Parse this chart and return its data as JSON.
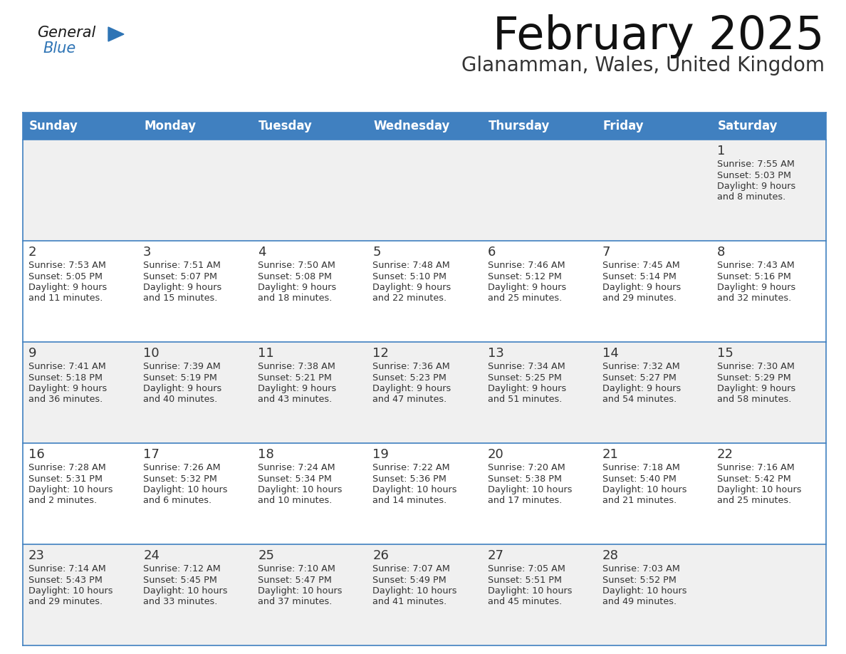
{
  "title": "February 2025",
  "subtitle": "Glanamman, Wales, United Kingdom",
  "days_of_week": [
    "Sunday",
    "Monday",
    "Tuesday",
    "Wednesday",
    "Thursday",
    "Friday",
    "Saturday"
  ],
  "header_bg": "#4080C0",
  "header_text": "#FFFFFF",
  "cell_bg_odd": "#F0F0F0",
  "cell_bg_even": "#FFFFFF",
  "border_color": "#4080C0",
  "day_number_color": "#333333",
  "cell_text_color": "#333333",
  "title_color": "#111111",
  "subtitle_color": "#333333",
  "logo_black": "#1A1A1A",
  "logo_blue": "#2E74B5",
  "triangle_blue": "#2E74B5",
  "calendar_data": [
    [
      null,
      null,
      null,
      null,
      null,
      null,
      {
        "day": 1,
        "sunrise": "7:55 AM",
        "sunset": "5:03 PM",
        "daylight": "9 hours",
        "daylight2": "and 8 minutes."
      }
    ],
    [
      {
        "day": 2,
        "sunrise": "7:53 AM",
        "sunset": "5:05 PM",
        "daylight": "9 hours",
        "daylight2": "and 11 minutes."
      },
      {
        "day": 3,
        "sunrise": "7:51 AM",
        "sunset": "5:07 PM",
        "daylight": "9 hours",
        "daylight2": "and 15 minutes."
      },
      {
        "day": 4,
        "sunrise": "7:50 AM",
        "sunset": "5:08 PM",
        "daylight": "9 hours",
        "daylight2": "and 18 minutes."
      },
      {
        "day": 5,
        "sunrise": "7:48 AM",
        "sunset": "5:10 PM",
        "daylight": "9 hours",
        "daylight2": "and 22 minutes."
      },
      {
        "day": 6,
        "sunrise": "7:46 AM",
        "sunset": "5:12 PM",
        "daylight": "9 hours",
        "daylight2": "and 25 minutes."
      },
      {
        "day": 7,
        "sunrise": "7:45 AM",
        "sunset": "5:14 PM",
        "daylight": "9 hours",
        "daylight2": "and 29 minutes."
      },
      {
        "day": 8,
        "sunrise": "7:43 AM",
        "sunset": "5:16 PM",
        "daylight": "9 hours",
        "daylight2": "and 32 minutes."
      }
    ],
    [
      {
        "day": 9,
        "sunrise": "7:41 AM",
        "sunset": "5:18 PM",
        "daylight": "9 hours",
        "daylight2": "and 36 minutes."
      },
      {
        "day": 10,
        "sunrise": "7:39 AM",
        "sunset": "5:19 PM",
        "daylight": "9 hours",
        "daylight2": "and 40 minutes."
      },
      {
        "day": 11,
        "sunrise": "7:38 AM",
        "sunset": "5:21 PM",
        "daylight": "9 hours",
        "daylight2": "and 43 minutes."
      },
      {
        "day": 12,
        "sunrise": "7:36 AM",
        "sunset": "5:23 PM",
        "daylight": "9 hours",
        "daylight2": "and 47 minutes."
      },
      {
        "day": 13,
        "sunrise": "7:34 AM",
        "sunset": "5:25 PM",
        "daylight": "9 hours",
        "daylight2": "and 51 minutes."
      },
      {
        "day": 14,
        "sunrise": "7:32 AM",
        "sunset": "5:27 PM",
        "daylight": "9 hours",
        "daylight2": "and 54 minutes."
      },
      {
        "day": 15,
        "sunrise": "7:30 AM",
        "sunset": "5:29 PM",
        "daylight": "9 hours",
        "daylight2": "and 58 minutes."
      }
    ],
    [
      {
        "day": 16,
        "sunrise": "7:28 AM",
        "sunset": "5:31 PM",
        "daylight": "10 hours",
        "daylight2": "and 2 minutes."
      },
      {
        "day": 17,
        "sunrise": "7:26 AM",
        "sunset": "5:32 PM",
        "daylight": "10 hours",
        "daylight2": "and 6 minutes."
      },
      {
        "day": 18,
        "sunrise": "7:24 AM",
        "sunset": "5:34 PM",
        "daylight": "10 hours",
        "daylight2": "and 10 minutes."
      },
      {
        "day": 19,
        "sunrise": "7:22 AM",
        "sunset": "5:36 PM",
        "daylight": "10 hours",
        "daylight2": "and 14 minutes."
      },
      {
        "day": 20,
        "sunrise": "7:20 AM",
        "sunset": "5:38 PM",
        "daylight": "10 hours",
        "daylight2": "and 17 minutes."
      },
      {
        "day": 21,
        "sunrise": "7:18 AM",
        "sunset": "5:40 PM",
        "daylight": "10 hours",
        "daylight2": "and 21 minutes."
      },
      {
        "day": 22,
        "sunrise": "7:16 AM",
        "sunset": "5:42 PM",
        "daylight": "10 hours",
        "daylight2": "and 25 minutes."
      }
    ],
    [
      {
        "day": 23,
        "sunrise": "7:14 AM",
        "sunset": "5:43 PM",
        "daylight": "10 hours",
        "daylight2": "and 29 minutes."
      },
      {
        "day": 24,
        "sunrise": "7:12 AM",
        "sunset": "5:45 PM",
        "daylight": "10 hours",
        "daylight2": "and 33 minutes."
      },
      {
        "day": 25,
        "sunrise": "7:10 AM",
        "sunset": "5:47 PM",
        "daylight": "10 hours",
        "daylight2": "and 37 minutes."
      },
      {
        "day": 26,
        "sunrise": "7:07 AM",
        "sunset": "5:49 PM",
        "daylight": "10 hours",
        "daylight2": "and 41 minutes."
      },
      {
        "day": 27,
        "sunrise": "7:05 AM",
        "sunset": "5:51 PM",
        "daylight": "10 hours",
        "daylight2": "and 45 minutes."
      },
      {
        "day": 28,
        "sunrise": "7:03 AM",
        "sunset": "5:52 PM",
        "daylight": "10 hours",
        "daylight2": "and 49 minutes."
      },
      null
    ]
  ]
}
